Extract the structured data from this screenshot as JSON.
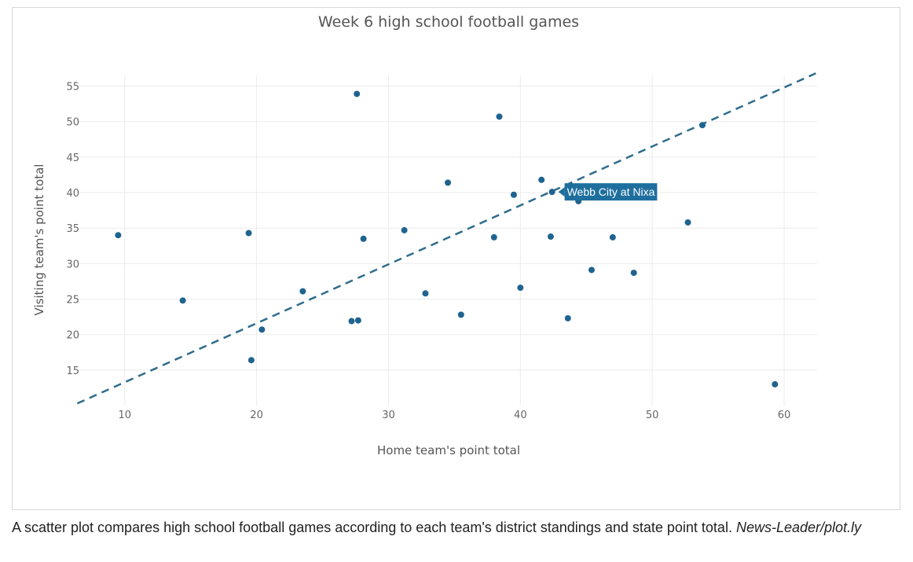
{
  "chart_data": {
    "type": "scatter",
    "title": "Week 6 high school football games",
    "xlabel": "Home team's point total",
    "ylabel": "Visiting team's point total",
    "xlim": [
      6.5,
      62.5
    ],
    "ylim": [
      10,
      56.5
    ],
    "xticks": [
      10,
      20,
      30,
      40,
      50,
      60
    ],
    "yticks": [
      15,
      20,
      25,
      30,
      35,
      40,
      45,
      50,
      55
    ],
    "grid": true,
    "points": [
      {
        "x": 9.5,
        "y": 34
      },
      {
        "x": 14.4,
        "y": 24.8
      },
      {
        "x": 19.4,
        "y": 34.3
      },
      {
        "x": 19.6,
        "y": 16.4
      },
      {
        "x": 20.4,
        "y": 20.7
      },
      {
        "x": 23.5,
        "y": 26.1
      },
      {
        "x": 27.2,
        "y": 21.9
      },
      {
        "x": 27.6,
        "y": 53.9
      },
      {
        "x": 27.7,
        "y": 22
      },
      {
        "x": 28.1,
        "y": 33.5
      },
      {
        "x": 31.2,
        "y": 34.7
      },
      {
        "x": 32.8,
        "y": 25.8
      },
      {
        "x": 34.5,
        "y": 41.4
      },
      {
        "x": 35.5,
        "y": 22.8
      },
      {
        "x": 38,
        "y": 33.7
      },
      {
        "x": 38.4,
        "y": 50.7
      },
      {
        "x": 39.5,
        "y": 39.7
      },
      {
        "x": 40,
        "y": 26.6
      },
      {
        "x": 41.6,
        "y": 41.8
      },
      {
        "x": 42.3,
        "y": 33.8
      },
      {
        "x": 42.4,
        "y": 40.1
      },
      {
        "x": 43.6,
        "y": 22.3
      },
      {
        "x": 44.4,
        "y": 38.8
      },
      {
        "x": 45.4,
        "y": 29.1
      },
      {
        "x": 47,
        "y": 33.7
      },
      {
        "x": 48.6,
        "y": 28.7
      },
      {
        "x": 52.7,
        "y": 35.8
      },
      {
        "x": 53.8,
        "y": 49.5
      },
      {
        "x": 59.3,
        "y": 13
      }
    ],
    "trendline": {
      "x": [
        6.4,
        62.4
      ],
      "y": [
        10.3,
        56.8
      ],
      "style": "dashed"
    },
    "hover_label": {
      "text": "Webb City at Nixa",
      "x": 42.4,
      "y": 40.1
    },
    "colors": {
      "points": "#1f6390",
      "trendline": "#2f6c8c",
      "hover_label": "#1f6f9e"
    }
  },
  "caption": {
    "text": "A scatter plot compares high school football games according to each team's district standings and state point total. ",
    "source": "News-Leader/plot.ly"
  }
}
